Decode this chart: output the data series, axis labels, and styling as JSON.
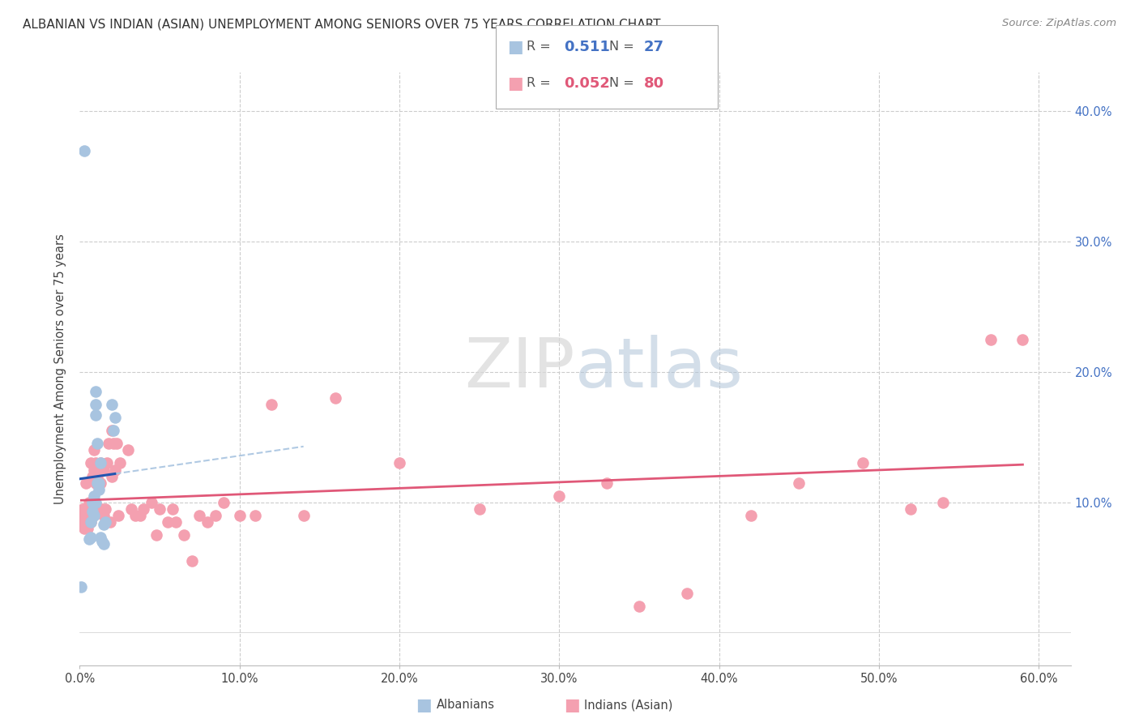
{
  "title": "ALBANIAN VS INDIAN (ASIAN) UNEMPLOYMENT AMONG SENIORS OVER 75 YEARS CORRELATION CHART",
  "source": "Source: ZipAtlas.com",
  "ylabel": "Unemployment Among Seniors over 75 years",
  "xlim": [
    0.0,
    0.62
  ],
  "ylim": [
    -0.025,
    0.43
  ],
  "xtick_values": [
    0.0,
    0.1,
    0.2,
    0.3,
    0.4,
    0.5,
    0.6
  ],
  "ytick_values": [
    0.1,
    0.2,
    0.3,
    0.4
  ],
  "albanian_color": "#a8c4e0",
  "indian_color": "#f4a0b0",
  "albanian_line_color": "#2255b0",
  "indian_line_color": "#e05878",
  "albanian_R": 0.511,
  "albanian_N": 27,
  "indian_R": 0.052,
  "indian_N": 80,
  "legend_label_albanian": "Albanians",
  "legend_label_indian": "Indians (Asian)",
  "albanian_x": [
    0.001,
    0.006,
    0.007,
    0.007,
    0.008,
    0.008,
    0.009,
    0.009,
    0.009,
    0.01,
    0.01,
    0.01,
    0.011,
    0.011,
    0.012,
    0.012,
    0.013,
    0.013,
    0.014,
    0.015,
    0.015,
    0.016,
    0.02,
    0.021,
    0.022,
    0.01,
    0.003
  ],
  "albanian_y": [
    0.035,
    0.072,
    0.085,
    0.073,
    0.1,
    0.093,
    0.09,
    0.1,
    0.105,
    0.175,
    0.167,
    0.1,
    0.115,
    0.145,
    0.115,
    0.11,
    0.13,
    0.073,
    0.07,
    0.083,
    0.068,
    0.085,
    0.175,
    0.155,
    0.165,
    0.185,
    0.37
  ],
  "indian_x": [
    0.001,
    0.002,
    0.002,
    0.003,
    0.003,
    0.004,
    0.004,
    0.004,
    0.005,
    0.005,
    0.005,
    0.005,
    0.006,
    0.006,
    0.006,
    0.007,
    0.007,
    0.007,
    0.008,
    0.008,
    0.008,
    0.009,
    0.009,
    0.009,
    0.01,
    0.01,
    0.01,
    0.011,
    0.012,
    0.013,
    0.013,
    0.014,
    0.015,
    0.015,
    0.016,
    0.017,
    0.018,
    0.019,
    0.02,
    0.02,
    0.021,
    0.022,
    0.023,
    0.024,
    0.025,
    0.03,
    0.032,
    0.035,
    0.038,
    0.04,
    0.045,
    0.048,
    0.05,
    0.055,
    0.058,
    0.06,
    0.065,
    0.07,
    0.075,
    0.08,
    0.085,
    0.09,
    0.1,
    0.11,
    0.12,
    0.14,
    0.16,
    0.2,
    0.25,
    0.3,
    0.33,
    0.35,
    0.38,
    0.42,
    0.45,
    0.49,
    0.52,
    0.54,
    0.57,
    0.59
  ],
  "indian_y": [
    0.09,
    0.095,
    0.085,
    0.095,
    0.08,
    0.09,
    0.085,
    0.115,
    0.09,
    0.085,
    0.095,
    0.08,
    0.09,
    0.085,
    0.1,
    0.13,
    0.095,
    0.085,
    0.1,
    0.095,
    0.12,
    0.125,
    0.14,
    0.1,
    0.13,
    0.115,
    0.095,
    0.12,
    0.095,
    0.13,
    0.115,
    0.095,
    0.125,
    0.09,
    0.095,
    0.13,
    0.145,
    0.085,
    0.155,
    0.12,
    0.145,
    0.125,
    0.145,
    0.09,
    0.13,
    0.14,
    0.095,
    0.09,
    0.09,
    0.095,
    0.1,
    0.075,
    0.095,
    0.085,
    0.095,
    0.085,
    0.075,
    0.055,
    0.09,
    0.085,
    0.09,
    0.1,
    0.09,
    0.09,
    0.175,
    0.09,
    0.18,
    0.13,
    0.095,
    0.105,
    0.115,
    0.02,
    0.03,
    0.09,
    0.115,
    0.13,
    0.095,
    0.1,
    0.225,
    0.225
  ]
}
